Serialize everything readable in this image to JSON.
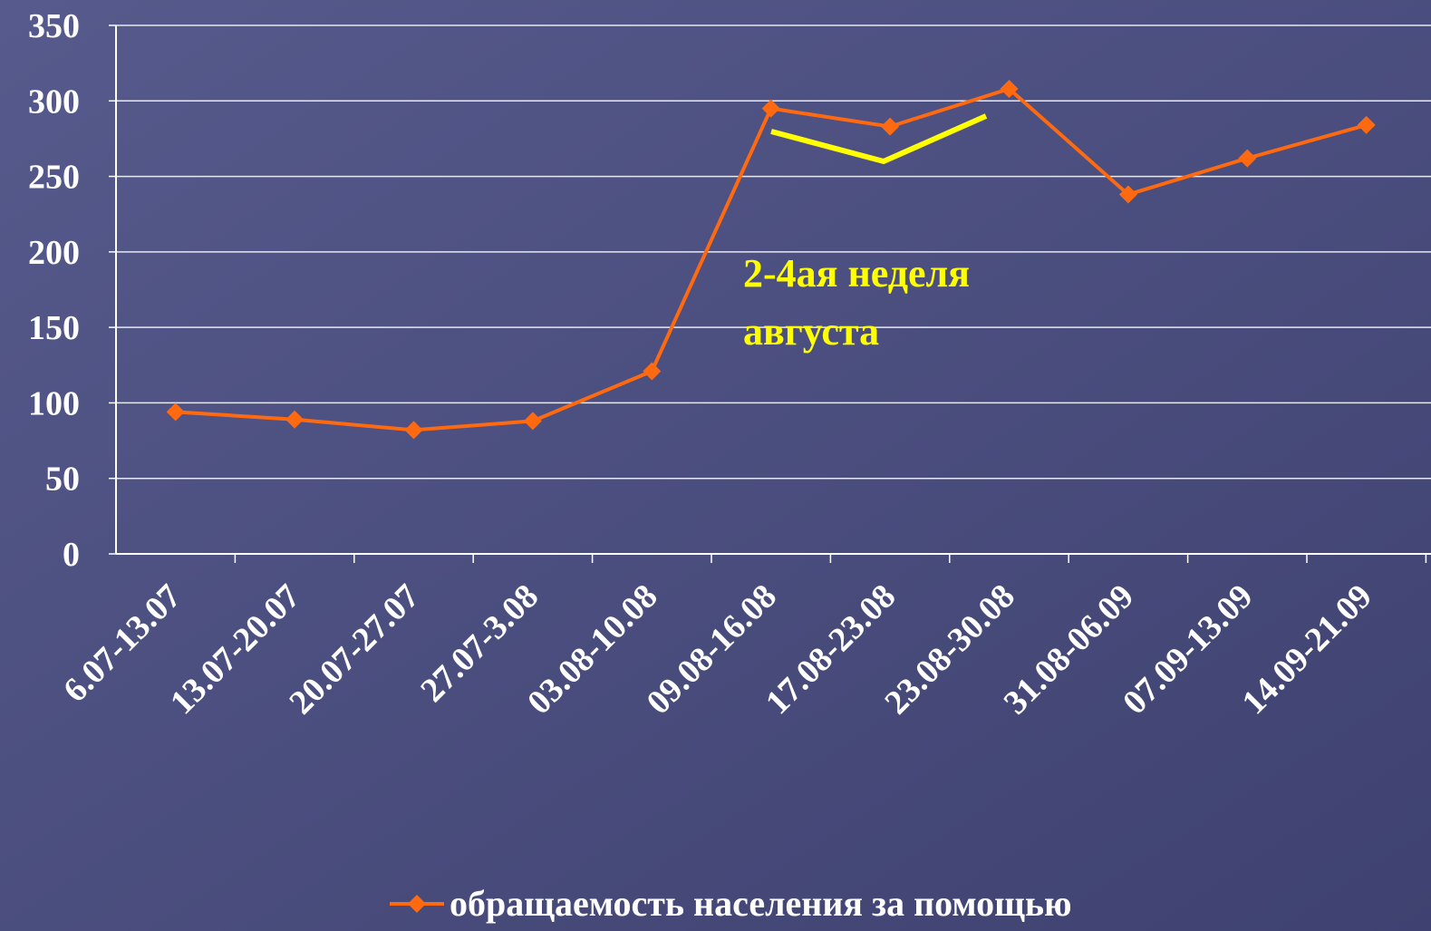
{
  "chart_data": {
    "type": "line",
    "categories": [
      "6.07-13.07",
      "13.07-20.07",
      "20.07-27.07",
      "27.07-3.08",
      "03.08-10.08",
      "09.08-16.08",
      "17.08-23.08",
      "23.08-30.08",
      "31.08-06.09",
      "07.09-13.09",
      "14.09-21.09"
    ],
    "series": [
      {
        "name": "обращаемость населения за помощью",
        "color": "#ff6a10",
        "values": [
          94,
          89,
          82,
          88,
          121,
          295,
          283,
          308,
          238,
          262,
          284
        ]
      }
    ],
    "ylim": [
      0,
      350
    ],
    "yticks": [
      0,
      50,
      100,
      150,
      200,
      250,
      300,
      350
    ],
    "grid": true,
    "annotation": [
      "2-4ая неделя",
      "августа"
    ],
    "annotation_color": "#ffff00",
    "legend": "bottom"
  }
}
